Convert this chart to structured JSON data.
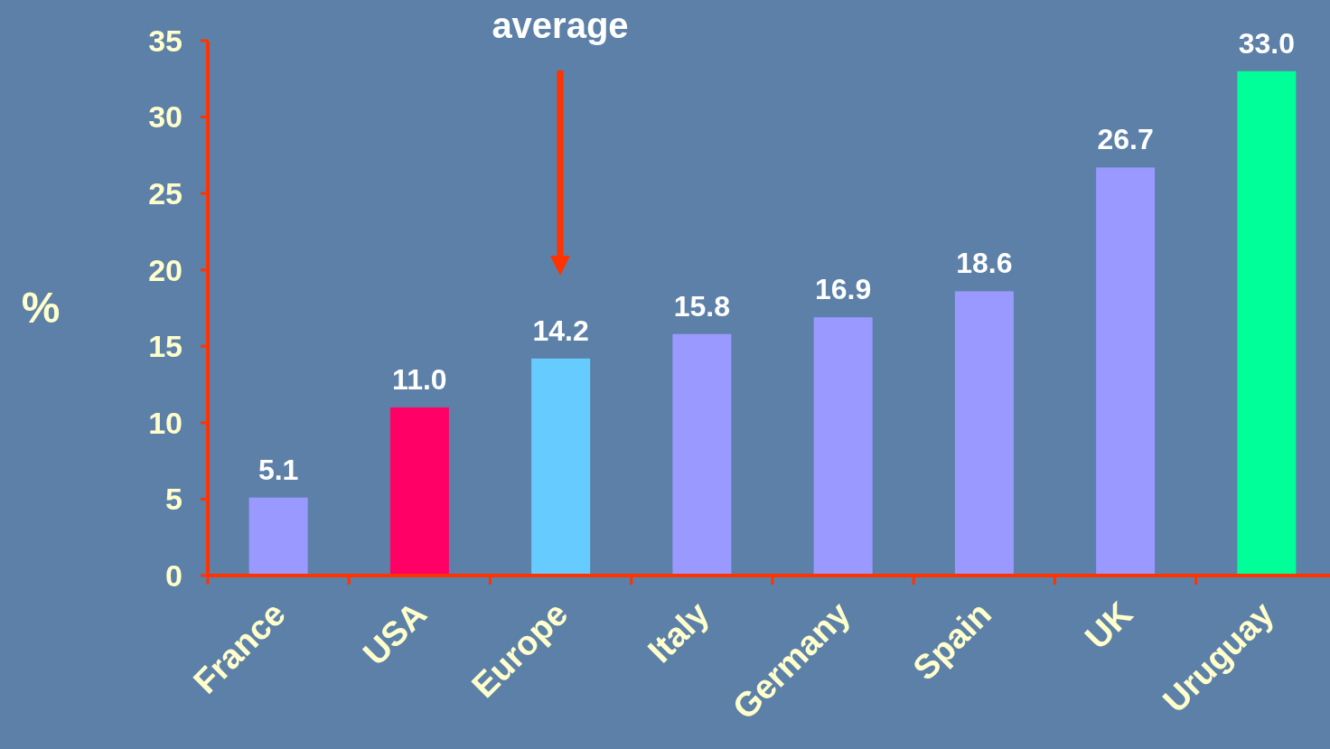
{
  "chart_data": {
    "type": "bar",
    "ylabel": "%",
    "categories": [
      "France",
      "USA",
      "Europe",
      "Italy",
      "Germany",
      "Spain",
      "UK",
      "Uruguay"
    ],
    "values": [
      5.1,
      11.0,
      14.2,
      15.8,
      16.9,
      18.6,
      26.7,
      33.0
    ],
    "colors": [
      "#9999ff",
      "#ff0066",
      "#66ccff",
      "#9999ff",
      "#9999ff",
      "#9999ff",
      "#9999ff",
      "#00ff99"
    ],
    "value_labels": [
      "5.1",
      "11.0",
      "14.2",
      "15.8",
      "16.9",
      "18.6",
      "26.7",
      "33.0"
    ],
    "ylim": [
      0,
      35
    ],
    "yticks": [
      0,
      5,
      10,
      15,
      20,
      25,
      30,
      35
    ],
    "grid": false,
    "annotations": [
      "average"
    ]
  }
}
